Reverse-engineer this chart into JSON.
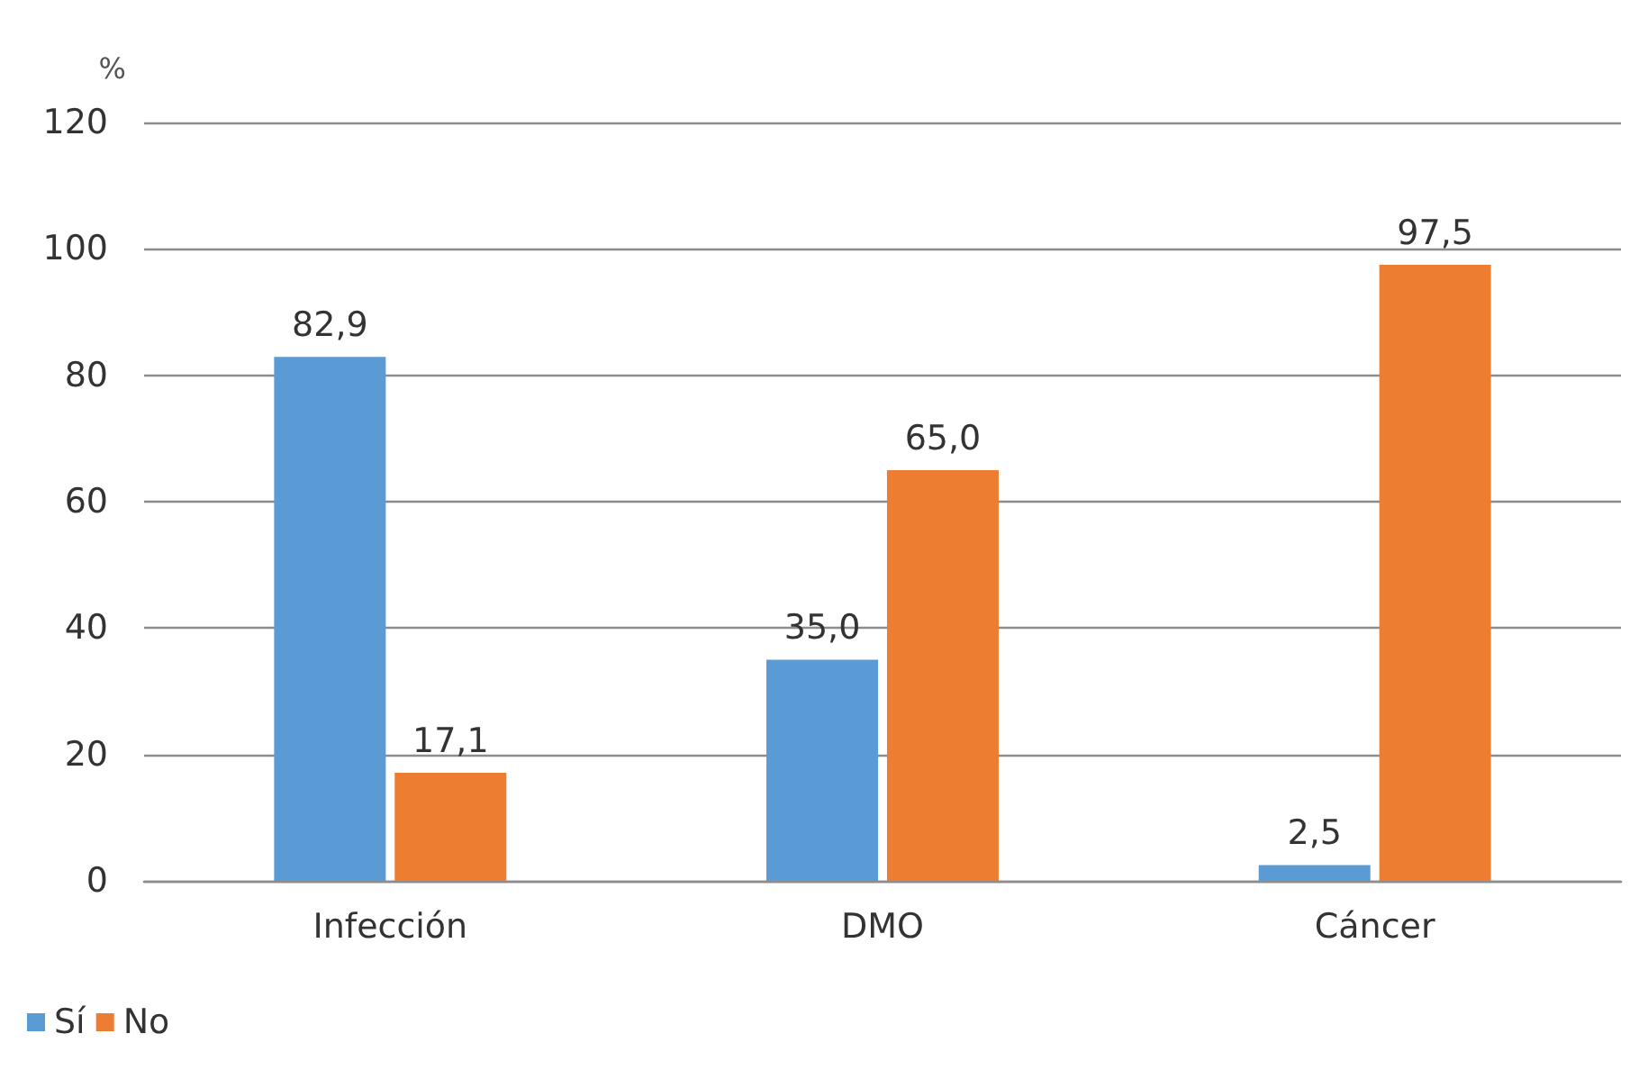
{
  "chart_data": {
    "type": "bar",
    "ylabel": "%",
    "categories": [
      "Infección",
      "DMO",
      "Cáncer"
    ],
    "series": [
      {
        "name": "Sí",
        "color": "#5b9bd5",
        "values": [
          82.9,
          35.0,
          2.5
        ],
        "value_labels": [
          "82,9",
          "35,0",
          "2,5"
        ]
      },
      {
        "name": "No",
        "color": "#ed7d31",
        "values": [
          17.1,
          65.0,
          97.5
        ],
        "value_labels": [
          "17,1",
          "65,0",
          "97,5"
        ]
      }
    ],
    "ylim": [
      0,
      120
    ],
    "yticks": [
      0,
      20,
      40,
      60,
      80,
      100,
      120
    ],
    "grid": "y",
    "legend": "bottom left"
  }
}
